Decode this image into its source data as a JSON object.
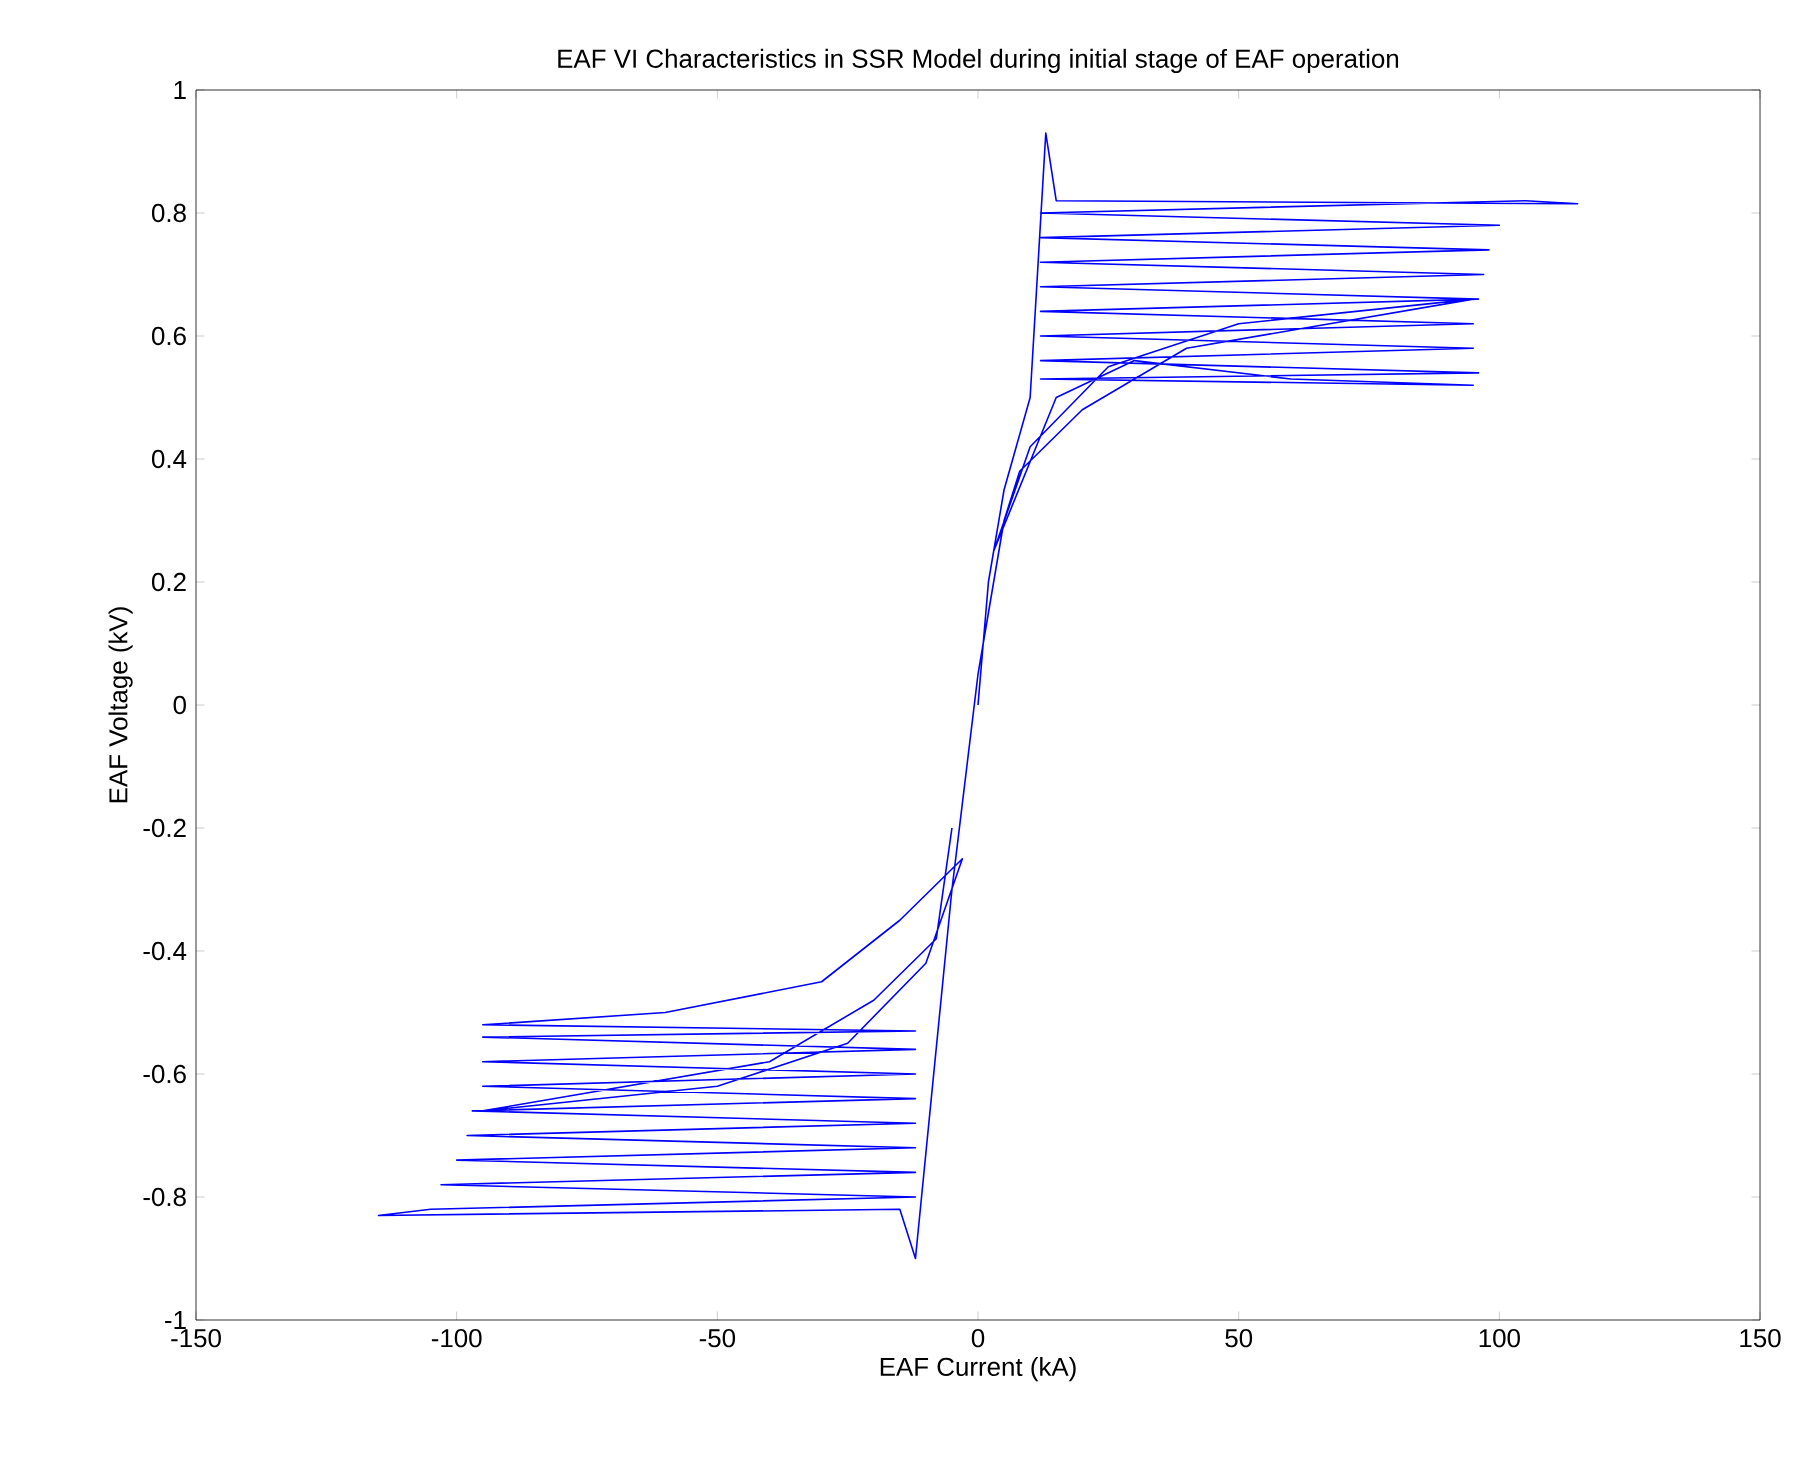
{
  "chart_data": {
    "type": "line",
    "title": "EAF VI Characteristics in SSR Model during initial stage of EAF operation",
    "xlabel": "EAF Current (kA)",
    "ylabel": "EAF Voltage (kV)",
    "xlim": [
      -150,
      150
    ],
    "ylim": [
      -1,
      1
    ],
    "xticks": [
      -150,
      -100,
      -50,
      0,
      50,
      100,
      150
    ],
    "yticks": [
      -1,
      -0.8,
      -0.6,
      -0.4,
      -0.2,
      0,
      0.2,
      0.4,
      0.6,
      0.8,
      1
    ],
    "grid": false,
    "marker": "none",
    "line_style": "solid",
    "series": [
      {
        "color": "#0000ff",
        "x": [
          0,
          2,
          5,
          10,
          13,
          15,
          115,
          105,
          12,
          100,
          12,
          98,
          12,
          97,
          12,
          96,
          12,
          95,
          12,
          95,
          12,
          96,
          12,
          95,
          60,
          30,
          15,
          3,
          10,
          25,
          50,
          95,
          40,
          20,
          8,
          5,
          0,
          -5,
          -12,
          -15,
          -115,
          -105,
          -12,
          -103,
          -12,
          -100,
          -12,
          -98,
          -12,
          -97,
          -12,
          -95,
          -12,
          -95,
          -12,
          -95,
          -12,
          -95,
          -60,
          -30,
          -15,
          -3,
          -10,
          -25,
          -50,
          -95,
          -40,
          -20,
          -8,
          -5
        ],
        "values": [
          0,
          0.2,
          0.35,
          0.5,
          0.93,
          0.82,
          0.815,
          0.82,
          0.8,
          0.78,
          0.76,
          0.74,
          0.72,
          0.7,
          0.68,
          0.66,
          0.64,
          0.62,
          0.6,
          0.58,
          0.56,
          0.54,
          0.53,
          0.52,
          0.53,
          0.56,
          0.5,
          0.25,
          0.42,
          0.55,
          0.62,
          0.66,
          0.58,
          0.48,
          0.38,
          0.3,
          0.05,
          -0.3,
          -0.9,
          -0.82,
          -0.83,
          -0.82,
          -0.8,
          -0.78,
          -0.76,
          -0.74,
          -0.72,
          -0.7,
          -0.68,
          -0.66,
          -0.64,
          -0.62,
          -0.6,
          -0.58,
          -0.56,
          -0.54,
          -0.53,
          -0.52,
          -0.5,
          -0.45,
          -0.35,
          -0.25,
          -0.42,
          -0.55,
          -0.62,
          -0.66,
          -0.58,
          -0.48,
          -0.38,
          -0.2
        ]
      }
    ]
  }
}
